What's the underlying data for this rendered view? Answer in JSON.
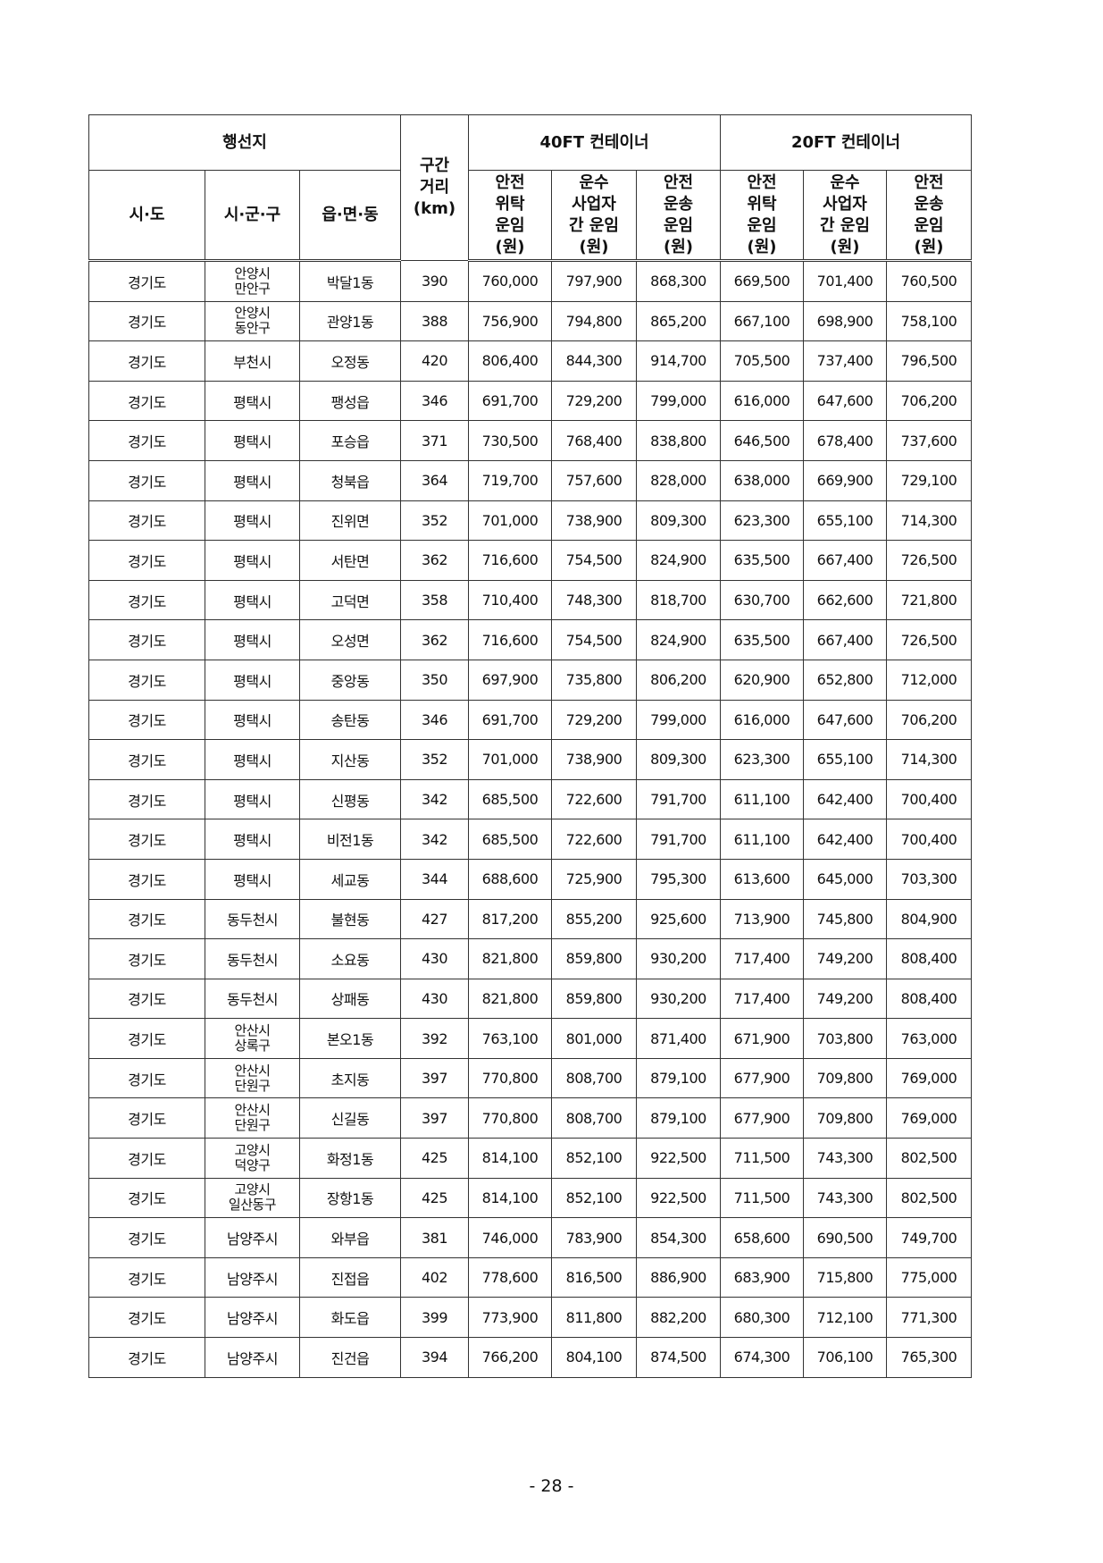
{
  "header": {
    "destination": "행선지",
    "sido": "시·도",
    "sigungu": "시·군·구",
    "eupmyeondong": "읍·면·동",
    "distance": [
      "구간",
      "거리",
      "(km)"
    ],
    "ft40": "40FT 컨테이너",
    "ft20": "20FT 컨테이너",
    "col_safety_consign": [
      "안전",
      "위탁",
      "운임",
      "(원)"
    ],
    "col_carrier": [
      "운수",
      "사업자",
      "간 운임",
      "(원)"
    ],
    "col_safety_transport": [
      "안전",
      "운송",
      "운임",
      "(원)"
    ]
  },
  "rows": [
    [
      "경기도",
      "안양시\n만안구",
      "박달1동",
      "390",
      "760,000",
      "797,900",
      "868,300",
      "669,500",
      "701,400",
      "760,500"
    ],
    [
      "경기도",
      "안양시\n동안구",
      "관양1동",
      "388",
      "756,900",
      "794,800",
      "865,200",
      "667,100",
      "698,900",
      "758,100"
    ],
    [
      "경기도",
      "부천시",
      "오정동",
      "420",
      "806,400",
      "844,300",
      "914,700",
      "705,500",
      "737,400",
      "796,500"
    ],
    [
      "경기도",
      "평택시",
      "팽성읍",
      "346",
      "691,700",
      "729,200",
      "799,000",
      "616,000",
      "647,600",
      "706,200"
    ],
    [
      "경기도",
      "평택시",
      "포승읍",
      "371",
      "730,500",
      "768,400",
      "838,800",
      "646,500",
      "678,400",
      "737,600"
    ],
    [
      "경기도",
      "평택시",
      "청북읍",
      "364",
      "719,700",
      "757,600",
      "828,000",
      "638,000",
      "669,900",
      "729,100"
    ],
    [
      "경기도",
      "평택시",
      "진위면",
      "352",
      "701,000",
      "738,900",
      "809,300",
      "623,300",
      "655,100",
      "714,300"
    ],
    [
      "경기도",
      "평택시",
      "서탄면",
      "362",
      "716,600",
      "754,500",
      "824,900",
      "635,500",
      "667,400",
      "726,500"
    ],
    [
      "경기도",
      "평택시",
      "고덕면",
      "358",
      "710,400",
      "748,300",
      "818,700",
      "630,700",
      "662,600",
      "721,800"
    ],
    [
      "경기도",
      "평택시",
      "오성면",
      "362",
      "716,600",
      "754,500",
      "824,900",
      "635,500",
      "667,400",
      "726,500"
    ],
    [
      "경기도",
      "평택시",
      "중앙동",
      "350",
      "697,900",
      "735,800",
      "806,200",
      "620,900",
      "652,800",
      "712,000"
    ],
    [
      "경기도",
      "평택시",
      "송탄동",
      "346",
      "691,700",
      "729,200",
      "799,000",
      "616,000",
      "647,600",
      "706,200"
    ],
    [
      "경기도",
      "평택시",
      "지산동",
      "352",
      "701,000",
      "738,900",
      "809,300",
      "623,300",
      "655,100",
      "714,300"
    ],
    [
      "경기도",
      "평택시",
      "신평동",
      "342",
      "685,500",
      "722,600",
      "791,700",
      "611,100",
      "642,400",
      "700,400"
    ],
    [
      "경기도",
      "평택시",
      "비전1동",
      "342",
      "685,500",
      "722,600",
      "791,700",
      "611,100",
      "642,400",
      "700,400"
    ],
    [
      "경기도",
      "평택시",
      "세교동",
      "344",
      "688,600",
      "725,900",
      "795,300",
      "613,600",
      "645,000",
      "703,300"
    ],
    [
      "경기도",
      "동두천시",
      "불현동",
      "427",
      "817,200",
      "855,200",
      "925,600",
      "713,900",
      "745,800",
      "804,900"
    ],
    [
      "경기도",
      "동두천시",
      "소요동",
      "430",
      "821,800",
      "859,800",
      "930,200",
      "717,400",
      "749,200",
      "808,400"
    ],
    [
      "경기도",
      "동두천시",
      "상패동",
      "430",
      "821,800",
      "859,800",
      "930,200",
      "717,400",
      "749,200",
      "808,400"
    ],
    [
      "경기도",
      "안산시\n상록구",
      "본오1동",
      "392",
      "763,100",
      "801,000",
      "871,400",
      "671,900",
      "703,800",
      "763,000"
    ],
    [
      "경기도",
      "안산시\n단원구",
      "초지동",
      "397",
      "770,800",
      "808,700",
      "879,100",
      "677,900",
      "709,800",
      "769,000"
    ],
    [
      "경기도",
      "안산시\n단원구",
      "신길동",
      "397",
      "770,800",
      "808,700",
      "879,100",
      "677,900",
      "709,800",
      "769,000"
    ],
    [
      "경기도",
      "고양시\n덕양구",
      "화정1동",
      "425",
      "814,100",
      "852,100",
      "922,500",
      "711,500",
      "743,300",
      "802,500"
    ],
    [
      "경기도",
      "고양시\n일산동구",
      "장항1동",
      "425",
      "814,100",
      "852,100",
      "922,500",
      "711,500",
      "743,300",
      "802,500"
    ],
    [
      "경기도",
      "남양주시",
      "와부읍",
      "381",
      "746,000",
      "783,900",
      "854,300",
      "658,600",
      "690,500",
      "749,700"
    ],
    [
      "경기도",
      "남양주시",
      "진접읍",
      "402",
      "778,600",
      "816,500",
      "886,900",
      "683,900",
      "715,800",
      "775,000"
    ],
    [
      "경기도",
      "남양주시",
      "화도읍",
      "399",
      "773,900",
      "811,800",
      "882,200",
      "680,300",
      "712,100",
      "771,300"
    ],
    [
      "경기도",
      "남양주시",
      "진건읍",
      "394",
      "766,200",
      "804,100",
      "874,500",
      "674,300",
      "706,100",
      "765,300"
    ]
  ],
  "page_number": "- 28 -"
}
